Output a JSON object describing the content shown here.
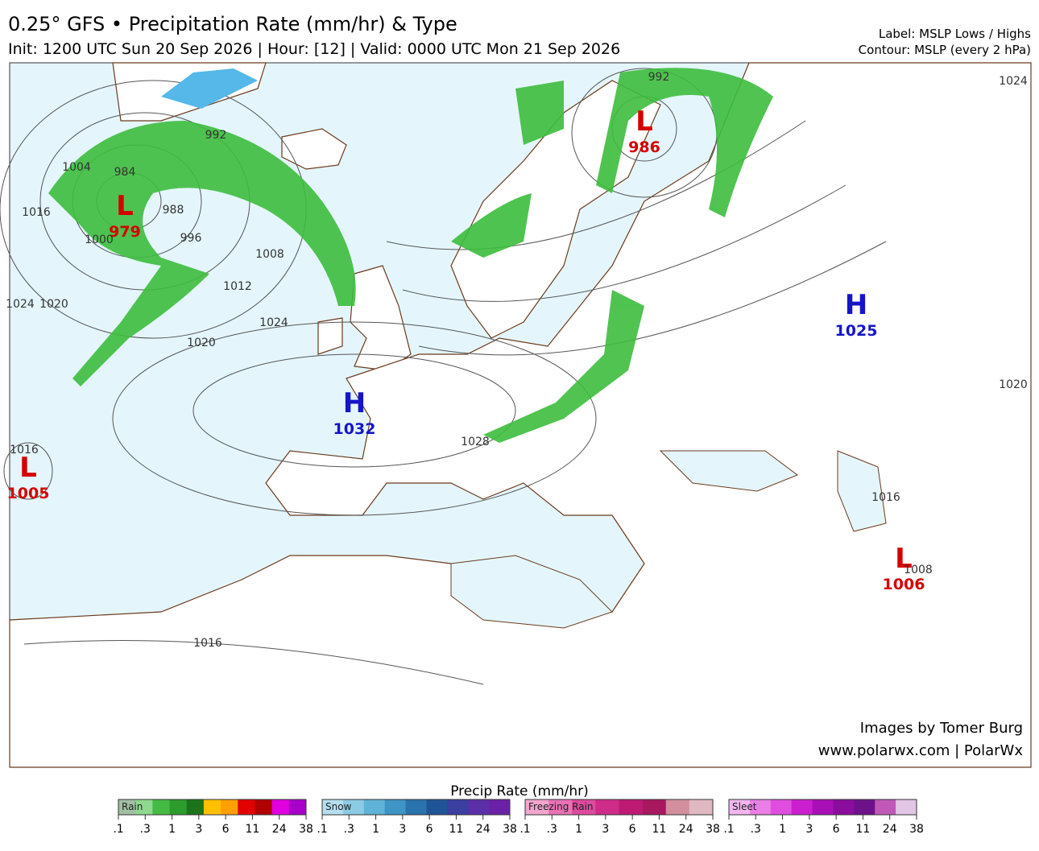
{
  "header": {
    "title": "0.25° GFS • Precipitation Rate (mm/hr) & Type",
    "subtitle": "Init: 1200 UTC Sun 20 Sep 2026 | Hour: [12] | Valid: 0000 UTC Mon 21 Sep 2026",
    "label_note": "Label: MSLP Lows / Highs",
    "contour_note": "Contour: MSLP (every 2 hPa)"
  },
  "map": {
    "centers": [
      {
        "symbol": "L",
        "value": "979"
      },
      {
        "symbol": "L",
        "value": "986"
      },
      {
        "symbol": "H",
        "value": "1025"
      },
      {
        "symbol": "H",
        "value": "1032"
      },
      {
        "symbol": "L",
        "value": "1005"
      },
      {
        "symbol": "L",
        "value": "1006"
      }
    ],
    "contour_labels": [
      "992",
      "984",
      "988",
      "996",
      "1000",
      "1004",
      "1016",
      "1020",
      "1024",
      "1008",
      "1012",
      "1020",
      "1024",
      "1016",
      "992",
      "1024",
      "1020",
      "1016",
      "1008",
      "1028",
      "1016"
    ],
    "credits": [
      "Images by Tomer Burg",
      "www.polarwx.com | PolarWx"
    ]
  },
  "legend": {
    "title": "Precip Rate (mm/hr)",
    "groups": [
      {
        "name": "Rain",
        "colors": [
          "#a3bfa3",
          "#8fd88f",
          "#45bb45",
          "#2c9c2c",
          "#1b741b",
          "#ffc000",
          "#ffa000",
          "#e20000",
          "#b00000",
          "#e000e0",
          "#a800c8"
        ],
        "ticks": [
          ".1",
          ".3",
          "1",
          "3",
          "6",
          "11",
          "24",
          "38"
        ]
      },
      {
        "name": "Snow",
        "colors": [
          "#b5dff0",
          "#8ccbe4",
          "#5fb3d6",
          "#3e94c4",
          "#2b73ad",
          "#1f5597",
          "#3a3fa0",
          "#5a2fa8",
          "#6b20a8"
        ],
        "ticks": [
          ".1",
          ".3",
          "1",
          "3",
          "6",
          "11",
          "24",
          "38"
        ]
      },
      {
        "name": "Freezing Rain",
        "colors": [
          "#f2a6cf",
          "#e872b5",
          "#dd4a9e",
          "#cf2b88",
          "#be1a74",
          "#a8185e",
          "#d38f9e",
          "#e0b8c2"
        ],
        "ticks": [
          ".1",
          ".3",
          "1",
          "3",
          "6",
          "11",
          "24",
          "38"
        ]
      },
      {
        "name": "Sleet",
        "colors": [
          "#f3b6f0",
          "#eb7ee6",
          "#e04ee0",
          "#cb1fcf",
          "#a80fb6",
          "#8a0d9e",
          "#6e118a",
          "#c058b8",
          "#e2c6e6"
        ],
        "ticks": [
          ".1",
          ".3",
          "1",
          "3",
          "6",
          "11",
          "24",
          "38"
        ]
      }
    ]
  }
}
